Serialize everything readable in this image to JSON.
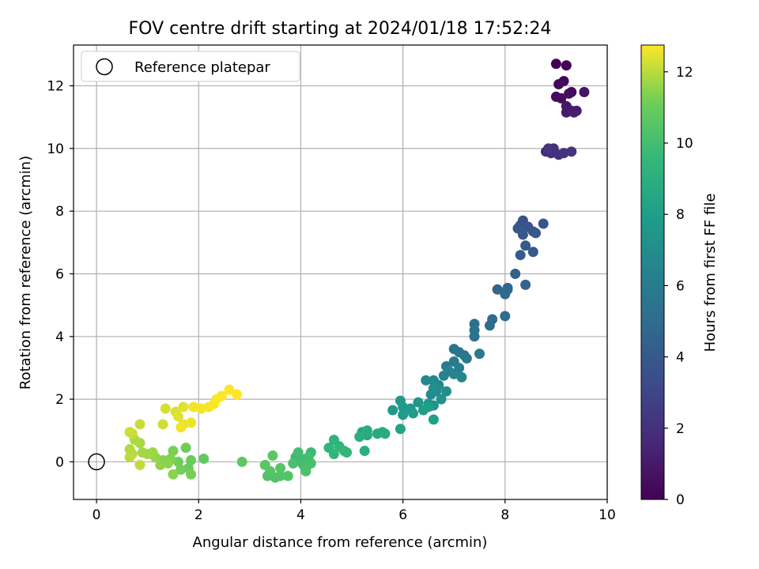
{
  "chart_data": {
    "type": "scatter",
    "title": "FOV centre drift starting at 2024/01/18 17:52:24",
    "xlabel": "Angular distance from reference (arcmin)",
    "ylabel": "Rotation from reference (arcmin)",
    "xlim": [
      -0.45,
      10
    ],
    "ylim": [
      -1.2,
      13.3
    ],
    "xticks": [
      0,
      2,
      4,
      6,
      8,
      10
    ],
    "yticks": [
      0,
      2,
      4,
      6,
      8,
      10,
      12
    ],
    "grid": true,
    "legend": {
      "placement": "top-left",
      "entries": [
        "Reference platepar"
      ]
    },
    "colorbar": {
      "label": "Hours from first FF file",
      "range": [
        0,
        12.75
      ],
      "ticks": [
        0,
        2,
        4,
        6,
        8,
        10,
        12
      ],
      "colormap": "viridis"
    },
    "reference_point": {
      "x": 0,
      "y": 0,
      "label": "Reference platepar"
    },
    "series": [
      {
        "columns": [
          "x",
          "y",
          "hours"
        ],
        "points": [
          [
            9.0,
            12.7,
            0.05
          ],
          [
            9.2,
            12.65,
            0.1
          ],
          [
            9.15,
            12.15,
            0.2
          ],
          [
            9.05,
            12.05,
            0.25
          ],
          [
            9.3,
            11.8,
            0.35
          ],
          [
            9.0,
            11.65,
            0.4
          ],
          [
            9.1,
            11.6,
            0.5
          ],
          [
            9.25,
            11.75,
            0.55
          ],
          [
            9.55,
            11.8,
            0.8
          ],
          [
            9.2,
            11.35,
            0.9
          ],
          [
            9.3,
            11.2,
            1.0
          ],
          [
            9.2,
            11.15,
            1.05
          ],
          [
            9.4,
            11.2,
            1.1
          ],
          [
            9.35,
            11.15,
            1.2
          ],
          [
            8.8,
            9.9,
            1.8
          ],
          [
            8.9,
            9.85,
            1.9
          ],
          [
            8.95,
            10.0,
            1.95
          ],
          [
            9.05,
            9.8,
            2.0
          ],
          [
            9.15,
            9.85,
            2.1
          ],
          [
            9.3,
            9.9,
            2.15
          ],
          [
            8.85,
            10.0,
            2.2
          ],
          [
            8.3,
            7.55,
            3.6
          ],
          [
            8.35,
            7.7,
            3.65
          ],
          [
            8.45,
            7.5,
            3.7
          ],
          [
            8.55,
            7.35,
            3.75
          ],
          [
            8.75,
            7.6,
            3.8
          ],
          [
            8.35,
            7.25,
            3.85
          ],
          [
            8.6,
            7.3,
            3.9
          ],
          [
            8.25,
            7.45,
            3.95
          ],
          [
            8.4,
            6.9,
            4.0
          ],
          [
            8.55,
            6.7,
            4.05
          ],
          [
            8.3,
            6.6,
            4.1
          ],
          [
            8.2,
            6.0,
            4.5
          ],
          [
            8.4,
            5.65,
            4.6
          ],
          [
            7.85,
            5.5,
            4.7
          ],
          [
            8.05,
            5.55,
            4.75
          ],
          [
            8.0,
            5.35,
            4.8
          ],
          [
            8.05,
            5.5,
            4.85
          ],
          [
            7.75,
            4.55,
            5.0
          ],
          [
            8.0,
            4.65,
            5.05
          ],
          [
            7.7,
            4.35,
            5.1
          ],
          [
            7.4,
            4.4,
            5.3
          ],
          [
            7.4,
            4.0,
            5.4
          ],
          [
            7.4,
            4.2,
            5.45
          ],
          [
            7.0,
            3.6,
            5.6
          ],
          [
            7.1,
            3.5,
            5.65
          ],
          [
            7.2,
            3.4,
            5.7
          ],
          [
            7.25,
            3.3,
            5.75
          ],
          [
            7.5,
            3.45,
            5.8
          ],
          [
            7.0,
            3.2,
            5.9
          ],
          [
            6.85,
            3.05,
            6.0
          ],
          [
            7.1,
            3.0,
            6.05
          ],
          [
            6.9,
            2.9,
            6.3
          ],
          [
            6.8,
            2.75,
            6.4
          ],
          [
            7.0,
            2.8,
            6.5
          ],
          [
            7.15,
            2.7,
            6.55
          ],
          [
            6.6,
            2.6,
            6.7
          ],
          [
            6.45,
            2.6,
            6.75
          ],
          [
            6.7,
            2.45,
            6.8
          ],
          [
            6.65,
            2.25,
            6.9
          ],
          [
            6.55,
            2.15,
            7.0
          ],
          [
            6.85,
            2.25,
            7.05
          ],
          [
            6.6,
            2.35,
            7.1
          ],
          [
            6.75,
            2.0,
            7.3
          ],
          [
            6.5,
            1.85,
            7.4
          ],
          [
            6.6,
            1.8,
            7.45
          ],
          [
            6.3,
            1.9,
            7.5
          ],
          [
            5.95,
            1.95,
            7.6
          ],
          [
            6.0,
            1.75,
            7.7
          ],
          [
            6.15,
            1.7,
            7.75
          ],
          [
            5.8,
            1.65,
            7.8
          ],
          [
            6.0,
            1.5,
            7.85
          ],
          [
            6.2,
            1.55,
            7.9
          ],
          [
            6.4,
            1.65,
            8.0
          ],
          [
            6.5,
            1.75,
            8.05
          ],
          [
            6.6,
            1.35,
            8.1
          ],
          [
            5.95,
            1.05,
            8.2
          ],
          [
            5.2,
            0.95,
            8.5
          ],
          [
            5.3,
            0.85,
            8.6
          ],
          [
            5.5,
            0.9,
            8.7
          ],
          [
            5.6,
            0.95,
            8.75
          ],
          [
            5.65,
            0.9,
            8.8
          ],
          [
            5.3,
            1.0,
            8.85
          ],
          [
            5.15,
            0.8,
            8.9
          ],
          [
            5.25,
            0.35,
            9.0
          ],
          [
            4.65,
            0.7,
            9.2
          ],
          [
            4.55,
            0.45,
            9.3
          ],
          [
            4.75,
            0.5,
            9.35
          ],
          [
            4.85,
            0.35,
            9.4
          ],
          [
            4.65,
            0.25,
            9.45
          ],
          [
            4.9,
            0.3,
            9.5
          ],
          [
            4.2,
            0.3,
            9.7
          ],
          [
            4.1,
            0.1,
            9.75
          ],
          [
            3.9,
            0.15,
            9.8
          ],
          [
            4.0,
            0.0,
            9.85
          ],
          [
            4.1,
            -0.2,
            9.9
          ],
          [
            4.15,
            0.15,
            9.95
          ],
          [
            3.95,
            0.3,
            10.0
          ],
          [
            4.05,
            -0.1,
            10.05
          ],
          [
            4.2,
            -0.05,
            10.1
          ],
          [
            3.85,
            -0.05,
            10.15
          ],
          [
            4.1,
            -0.3,
            10.2
          ],
          [
            3.35,
            -0.45,
            10.3
          ],
          [
            3.5,
            -0.5,
            10.35
          ],
          [
            3.6,
            -0.45,
            10.4
          ],
          [
            3.75,
            -0.45,
            10.45
          ],
          [
            3.6,
            -0.2,
            10.5
          ],
          [
            3.4,
            -0.3,
            10.55
          ],
          [
            3.3,
            -0.1,
            10.6
          ],
          [
            3.45,
            0.2,
            10.65
          ],
          [
            2.85,
            0.0,
            10.7
          ],
          [
            2.1,
            0.1,
            10.8
          ],
          [
            1.8,
            -0.2,
            11.0
          ],
          [
            1.85,
            0.05,
            11.05
          ],
          [
            1.75,
            0.45,
            11.1
          ],
          [
            1.6,
            0.0,
            11.15
          ],
          [
            1.65,
            -0.25,
            11.2
          ],
          [
            1.85,
            -0.4,
            11.25
          ],
          [
            1.5,
            0.35,
            11.3
          ],
          [
            1.45,
            0.1,
            11.35
          ],
          [
            1.3,
            0.05,
            11.4
          ],
          [
            1.4,
            -0.05,
            11.45
          ],
          [
            1.5,
            -0.4,
            11.5
          ],
          [
            1.25,
            -0.1,
            11.55
          ],
          [
            1.15,
            0.15,
            11.6
          ],
          [
            1.1,
            0.3,
            11.65
          ],
          [
            1.0,
            0.25,
            11.7
          ],
          [
            0.9,
            0.3,
            11.75
          ],
          [
            0.85,
            0.6,
            11.8
          ],
          [
            0.75,
            0.7,
            11.85
          ],
          [
            0.65,
            0.4,
            11.9
          ],
          [
            0.7,
            0.25,
            11.95
          ],
          [
            0.65,
            0.15,
            12.0
          ],
          [
            0.85,
            -0.1,
            12.05
          ],
          [
            0.7,
            0.9,
            12.1
          ],
          [
            0.85,
            1.2,
            12.15
          ],
          [
            0.65,
            0.95,
            12.2
          ],
          [
            1.3,
            1.2,
            12.25
          ],
          [
            1.35,
            1.7,
            12.3
          ],
          [
            1.55,
            1.6,
            12.35
          ],
          [
            1.7,
            1.75,
            12.4
          ],
          [
            1.6,
            1.45,
            12.45
          ],
          [
            1.7,
            1.2,
            12.5
          ],
          [
            1.85,
            1.25,
            12.55
          ],
          [
            1.65,
            1.1,
            12.6
          ],
          [
            1.9,
            1.75,
            12.62
          ],
          [
            2.05,
            1.7,
            12.65
          ],
          [
            2.2,
            1.75,
            12.67
          ],
          [
            2.3,
            1.85,
            12.7
          ],
          [
            2.35,
            2.0,
            12.72
          ],
          [
            2.45,
            2.1,
            12.73
          ],
          [
            2.6,
            2.3,
            12.74
          ],
          [
            2.75,
            2.15,
            12.75
          ]
        ]
      }
    ]
  }
}
